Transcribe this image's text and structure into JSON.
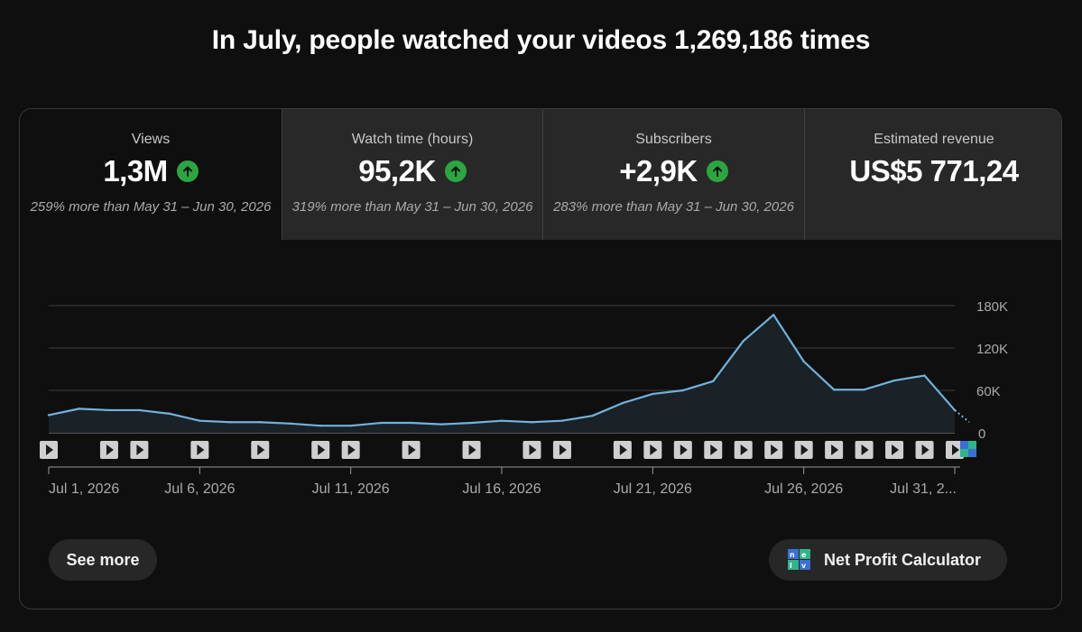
{
  "headline": "In July, people watched your videos 1,269,186 times",
  "metrics": [
    {
      "label": "Views",
      "value": "1,3M",
      "trend": "up",
      "compare": "259% more than May 31 – Jun 30, 2026"
    },
    {
      "label": "Watch time (hours)",
      "value": "95,2K",
      "trend": "up",
      "compare": "319% more than May 31 – Jun 30, 2026"
    },
    {
      "label": "Subscribers",
      "value": "+2,9K",
      "trend": "up",
      "compare": "283% more than May 31 – Jun 30, 2026"
    },
    {
      "label": "Estimated revenue",
      "value": "US$5 771,24",
      "trend": "",
      "compare": ""
    }
  ],
  "buttons": {
    "see_more": "See more",
    "net_profit": "Net Profit Calculator"
  },
  "icons": {
    "trend_up": "arrow-up-icon",
    "video_marker": "play-icon",
    "extension": "nexlev-logo-icon"
  },
  "colors": {
    "line": "#6fb3de",
    "up": "#2ba640",
    "background": "#0f0f0f"
  },
  "chart_data": {
    "type": "line",
    "x": [
      "Jul 1",
      "Jul 2",
      "Jul 3",
      "Jul 4",
      "Jul 5",
      "Jul 6",
      "Jul 7",
      "Jul 8",
      "Jul 9",
      "Jul 10",
      "Jul 11",
      "Jul 12",
      "Jul 13",
      "Jul 14",
      "Jul 15",
      "Jul 16",
      "Jul 17",
      "Jul 18",
      "Jul 19",
      "Jul 20",
      "Jul 21",
      "Jul 22",
      "Jul 23",
      "Jul 24",
      "Jul 25",
      "Jul 26",
      "Jul 27",
      "Jul 28",
      "Jul 29",
      "Jul 30",
      "Jul 31"
    ],
    "values": [
      25000,
      34000,
      32000,
      32000,
      27000,
      17000,
      15000,
      15000,
      13000,
      10000,
      10000,
      14000,
      14000,
      12000,
      14000,
      17000,
      15000,
      17000,
      24000,
      42000,
      55000,
      60000,
      73000,
      130000,
      167000,
      101000,
      61000,
      61000,
      74000,
      81000,
      32000
    ],
    "projected_end": 15000,
    "tick_labels_x": [
      "Jul 1, 2026",
      "Jul 6, 2026",
      "Jul 11, 2026",
      "Jul 16, 2026",
      "Jul 21, 2026",
      "Jul 26, 2026",
      "Jul 31, 2..."
    ],
    "tick_labels_y": [
      "180K",
      "120K",
      "60K",
      "0"
    ],
    "ylim": [
      0,
      180000
    ],
    "y_ticks": [
      0,
      60000,
      120000,
      180000
    ],
    "video_marker_days": [
      1,
      3,
      4,
      6,
      8,
      10,
      11,
      13,
      15,
      17,
      18,
      20,
      21,
      22,
      23,
      24,
      25,
      26,
      27,
      28,
      29,
      30,
      31
    ],
    "grid": true
  }
}
